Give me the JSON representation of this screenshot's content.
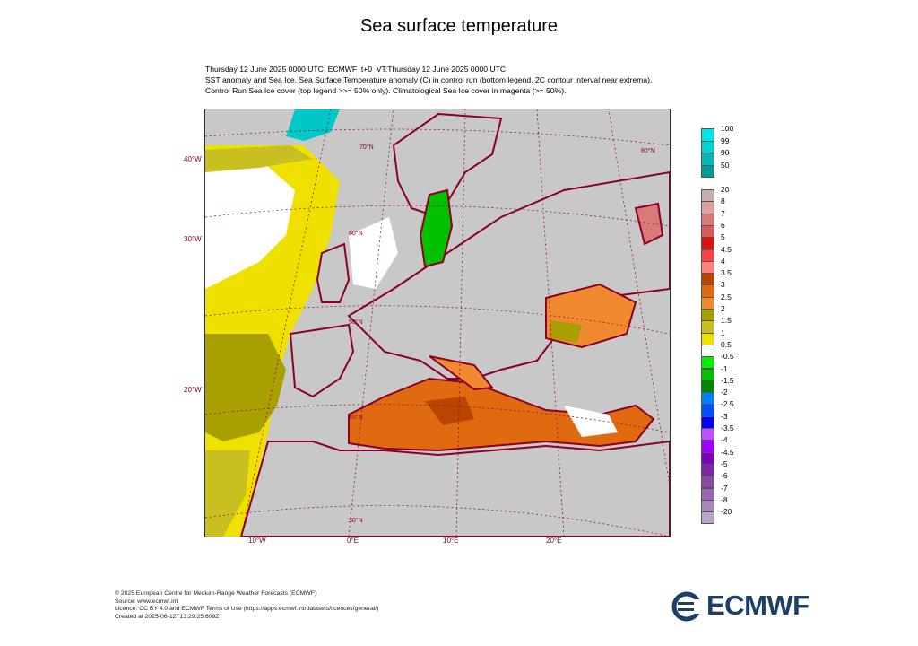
{
  "title": "Sea surface temperature",
  "subtitle": {
    "line1": "Thursday 12 June 2025 0000 UTC  ECMWF  t+0  VT:Thursday 12 June 2025 0000 UTC",
    "line2": "SST anomaly and Sea Ice. Sea Surface Temperature anomaly (C) in control run (bottom legend, 2C contour interval near extrema).",
    "line3": "Control Run Sea Ice cover (top legend >>= 50% only). Climatological Sea Ice cover in magenta (>= 50%)."
  },
  "map": {
    "lat_labels_left": [
      "40°W",
      "30°W",
      "20°W"
    ],
    "inner_labels": [
      "70°N",
      "60°N",
      "50°N",
      "40°N",
      "30°N",
      "80°N"
    ],
    "lon_labels_bottom": [
      "10°W",
      "0°E",
      "10°E",
      "20°E"
    ]
  },
  "ice_legend": {
    "labels": [
      "100",
      "99",
      "90",
      "50"
    ],
    "colors": [
      "#00e6e6",
      "#00d2d2",
      "#00b8b8",
      "#009a9a"
    ]
  },
  "anomaly_legend": {
    "labels": [
      "20",
      "8",
      "7",
      "6",
      "5",
      "4.5",
      "4",
      "3.5",
      "3",
      "2.5",
      "2",
      "1.5",
      "1",
      "0.5",
      "-0.5",
      "-1",
      "-1.5",
      "-2",
      "-2.5",
      "-3",
      "-3.5",
      "-4",
      "-4.5",
      "-5",
      "-6",
      "-7",
      "-8",
      "-20"
    ],
    "colors": [
      "#c4aeae",
      "#e0a0a0",
      "#d87a7a",
      "#d45c5c",
      "#e01010",
      "#ff4040",
      "#ff8080",
      "#b84600",
      "#e06a10",
      "#f08a30",
      "#a8a000",
      "#c8c020",
      "#f0e000",
      "#ffffff",
      "#00f000",
      "#00c000",
      "#008800",
      "#0080ff",
      "#0050ff",
      "#0000ff",
      "#c050ff",
      "#a000ff",
      "#8000c0",
      "#7a2aa0",
      "#8a4aa8",
      "#9a66b0",
      "#a888b8",
      "#b8a4c4"
    ]
  },
  "footer": {
    "line1": "© 2025 European Centre for Medium-Range Weather Forecasts (ECMWF)",
    "line2": "Source: www.ecmwf.int",
    "line3": "Licence: CC BY 4.0 and ECMWF Terms of Use (https://apps.ecmwf.int/datasets/licences/general/)",
    "line4": "Created at 2025-06-12T13:29:25.609Z"
  },
  "logo_text": "ECMWF"
}
